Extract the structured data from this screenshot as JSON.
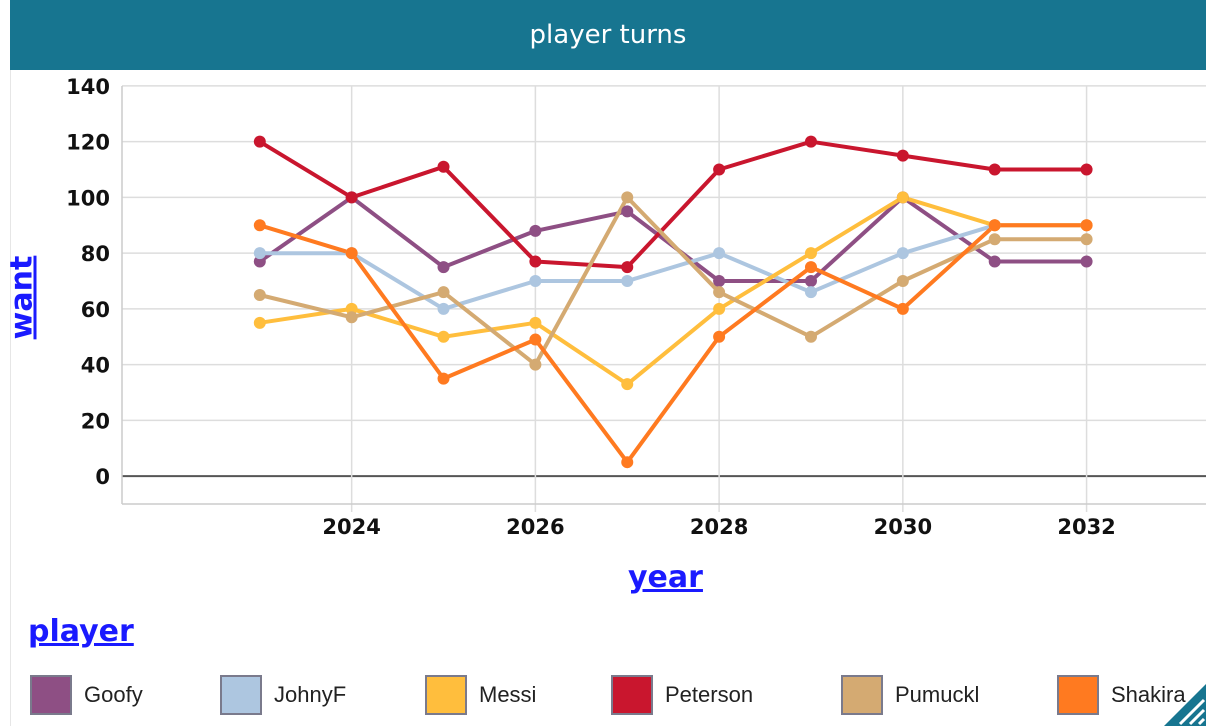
{
  "header": {
    "title": "player turns"
  },
  "axes": {
    "xlabel": "year",
    "ylabel": "want",
    "legend_title": "player"
  },
  "legend": {
    "items": [
      {
        "label": "Goofy",
        "color": "#8e4f84"
      },
      {
        "label": "JohnyF",
        "color": "#adc6e0"
      },
      {
        "label": "Messi",
        "color": "#ffbe3d"
      },
      {
        "label": "Peterson",
        "color": "#c9162e"
      },
      {
        "label": "Pumuckl",
        "color": "#d4aa72"
      },
      {
        "label": "Shakira",
        "color": "#ff7a20"
      }
    ]
  },
  "chart_data": {
    "type": "line",
    "title": "player turns",
    "xlabel": "year",
    "ylabel": "want",
    "x": [
      2023,
      2024,
      2025,
      2026,
      2027,
      2028,
      2029,
      2030,
      2031,
      2032
    ],
    "xlim": [
      2021.5,
      2033.3
    ],
    "ylim": [
      -10,
      145
    ],
    "xticks": [
      2024,
      2026,
      2028,
      2030,
      2032
    ],
    "yticks": [
      0,
      20,
      40,
      60,
      80,
      100,
      120,
      140
    ],
    "grid": true,
    "legend_position": "bottom",
    "series": [
      {
        "name": "Goofy",
        "color": "#8e4f84",
        "values": [
          77,
          100,
          75,
          88,
          95,
          70,
          70,
          100,
          77,
          77
        ]
      },
      {
        "name": "JohnyF",
        "color": "#adc6e0",
        "values": [
          80,
          80,
          60,
          70,
          70,
          80,
          66,
          80,
          90,
          90
        ]
      },
      {
        "name": "Messi",
        "color": "#ffbe3d",
        "values": [
          55,
          60,
          50,
          55,
          33,
          60,
          80,
          100,
          90,
          90
        ]
      },
      {
        "name": "Peterson",
        "color": "#c9162e",
        "values": [
          120,
          100,
          111,
          77,
          75,
          110,
          120,
          115,
          110,
          110
        ]
      },
      {
        "name": "Pumuckl",
        "color": "#d4aa72",
        "values": [
          65,
          57,
          66,
          40,
          100,
          66,
          50,
          70,
          85,
          85
        ]
      },
      {
        "name": "Shakira",
        "color": "#ff7a20",
        "values": [
          90,
          80,
          35,
          49,
          5,
          50,
          75,
          60,
          90,
          90
        ]
      }
    ]
  }
}
